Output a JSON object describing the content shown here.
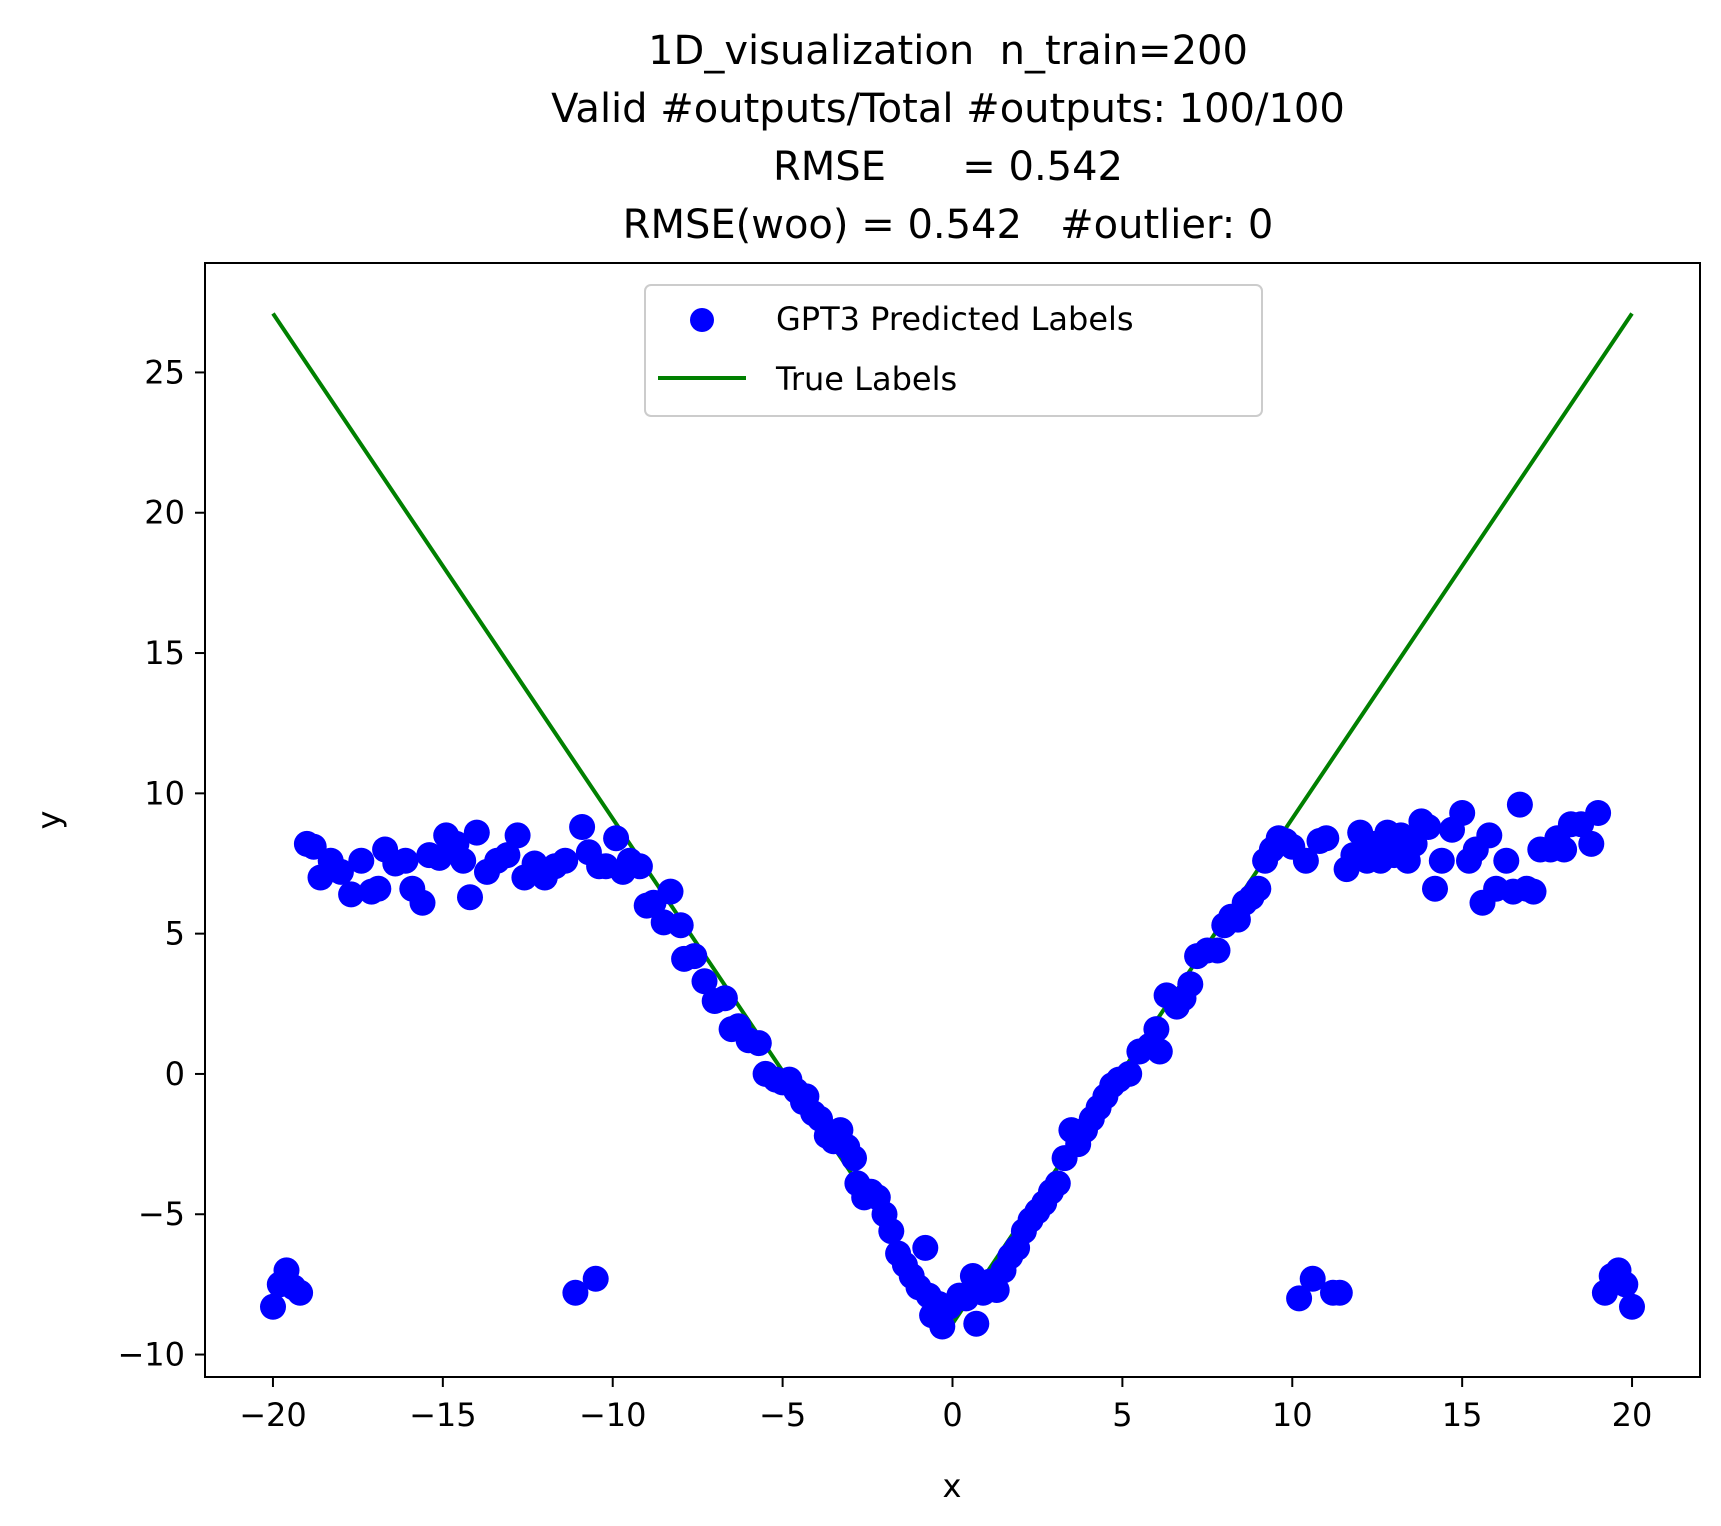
{
  "chart_data": {
    "type": "scatter",
    "title_lines": [
      "1D_visualization  n_train=200",
      "Valid #outputs/Total #outputs: 100/100",
      "RMSE      = 0.542",
      "RMSE(woo) = 0.542   #outlier: 0"
    ],
    "xlabel": "x",
    "ylabel": "y",
    "xlim": [
      -22,
      22
    ],
    "ylim": [
      -10.8,
      28.9
    ],
    "x_ticks": [
      -20,
      -15,
      -10,
      -5,
      0,
      5,
      10,
      15,
      20
    ],
    "x_tick_labels": [
      "−20",
      "−15",
      "−10",
      "−5",
      "0",
      "5",
      "10",
      "15",
      "20"
    ],
    "y_ticks": [
      -10,
      -5,
      0,
      5,
      10,
      15,
      20,
      25
    ],
    "y_tick_labels": [
      "−10",
      "−5",
      "0",
      "5",
      "10",
      "15",
      "20",
      "25"
    ],
    "grid": false,
    "legend_position": "upper-center",
    "legend": [
      {
        "label": "GPT3 Predicted Labels",
        "kind": "marker",
        "color": "#0000ff"
      },
      {
        "label": "True Labels",
        "kind": "line",
        "color": "#008000"
      }
    ],
    "series": [
      {
        "name": "GPT3 Predicted Labels",
        "kind": "scatter",
        "color": "#0000ff",
        "points": [
          [
            -20.0,
            -8.3
          ],
          [
            -19.8,
            -7.5
          ],
          [
            -19.6,
            -7.0
          ],
          [
            -19.4,
            -7.6
          ],
          [
            -19.2,
            -7.8
          ],
          [
            -19.0,
            8.2
          ],
          [
            -18.8,
            8.1
          ],
          [
            -18.6,
            7.0
          ],
          [
            -18.3,
            7.6
          ],
          [
            -18.0,
            7.2
          ],
          [
            -17.7,
            6.4
          ],
          [
            -17.4,
            7.6
          ],
          [
            -17.1,
            6.5
          ],
          [
            -16.9,
            6.6
          ],
          [
            -16.7,
            8.0
          ],
          [
            -16.4,
            7.5
          ],
          [
            -16.1,
            7.6
          ],
          [
            -15.9,
            6.6
          ],
          [
            -15.6,
            6.1
          ],
          [
            -15.4,
            7.8
          ],
          [
            -15.1,
            7.7
          ],
          [
            -14.9,
            8.5
          ],
          [
            -14.6,
            8.2
          ],
          [
            -14.4,
            7.6
          ],
          [
            -14.2,
            6.3
          ],
          [
            -14.0,
            8.6
          ],
          [
            -13.7,
            7.2
          ],
          [
            -13.4,
            7.6
          ],
          [
            -13.1,
            7.8
          ],
          [
            -12.8,
            8.5
          ],
          [
            -12.6,
            7.0
          ],
          [
            -12.3,
            7.5
          ],
          [
            -12.0,
            7.0
          ],
          [
            -11.7,
            7.4
          ],
          [
            -11.4,
            7.6
          ],
          [
            -11.1,
            -7.8
          ],
          [
            -10.9,
            8.8
          ],
          [
            -10.7,
            7.9
          ],
          [
            -10.5,
            -7.3
          ],
          [
            -10.4,
            7.4
          ],
          [
            -10.2,
            7.4
          ],
          [
            -9.9,
            8.4
          ],
          [
            -9.7,
            7.2
          ],
          [
            -9.5,
            7.6
          ],
          [
            -9.2,
            7.4
          ],
          [
            -9.0,
            6.0
          ],
          [
            -8.8,
            6.1
          ],
          [
            -8.5,
            5.4
          ],
          [
            -8.3,
            6.5
          ],
          [
            -8.0,
            5.3
          ],
          [
            -7.9,
            4.1
          ],
          [
            -7.6,
            4.2
          ],
          [
            -7.3,
            3.3
          ],
          [
            -7.0,
            2.6
          ],
          [
            -6.7,
            2.7
          ],
          [
            -6.5,
            1.6
          ],
          [
            -6.3,
            1.7
          ],
          [
            -6.0,
            1.2
          ],
          [
            -5.7,
            1.1
          ],
          [
            -5.5,
            0.0
          ],
          [
            -5.2,
            -0.2
          ],
          [
            -5.0,
            -0.3
          ],
          [
            -4.8,
            -0.2
          ],
          [
            -4.6,
            -0.6
          ],
          [
            -4.4,
            -1.0
          ],
          [
            -4.3,
            -0.8
          ],
          [
            -4.1,
            -1.4
          ],
          [
            -3.9,
            -1.6
          ],
          [
            -3.7,
            -2.2
          ],
          [
            -3.5,
            -2.4
          ],
          [
            -3.3,
            -2.0
          ],
          [
            -3.1,
            -2.6
          ],
          [
            -2.9,
            -3.0
          ],
          [
            -2.8,
            -3.9
          ],
          [
            -2.6,
            -4.4
          ],
          [
            -2.4,
            -4.2
          ],
          [
            -2.2,
            -4.4
          ],
          [
            -2.0,
            -5.0
          ],
          [
            -1.8,
            -5.6
          ],
          [
            -1.6,
            -6.4
          ],
          [
            -1.4,
            -6.8
          ],
          [
            -1.2,
            -7.2
          ],
          [
            -1.0,
            -7.6
          ],
          [
            -0.8,
            -6.2
          ],
          [
            -0.7,
            -7.9
          ],
          [
            -0.6,
            -8.6
          ],
          [
            -0.4,
            -8.2
          ],
          [
            -0.3,
            -9.0
          ],
          [
            -0.1,
            -8.3
          ],
          [
            0.2,
            -7.9
          ],
          [
            0.4,
            -8.0
          ],
          [
            0.6,
            -7.2
          ],
          [
            0.7,
            -8.9
          ],
          [
            0.9,
            -7.8
          ],
          [
            1.1,
            -7.4
          ],
          [
            1.3,
            -7.7
          ],
          [
            1.5,
            -7.0
          ],
          [
            1.7,
            -6.5
          ],
          [
            1.9,
            -6.2
          ],
          [
            2.1,
            -5.6
          ],
          [
            2.3,
            -5.2
          ],
          [
            2.5,
            -4.9
          ],
          [
            2.7,
            -4.6
          ],
          [
            2.9,
            -4.2
          ],
          [
            3.1,
            -3.9
          ],
          [
            3.3,
            -3.0
          ],
          [
            3.5,
            -2.0
          ],
          [
            3.7,
            -2.5
          ],
          [
            3.9,
            -2.0
          ],
          [
            4.1,
            -1.6
          ],
          [
            4.3,
            -1.2
          ],
          [
            4.5,
            -0.8
          ],
          [
            4.7,
            -0.4
          ],
          [
            4.9,
            -0.2
          ],
          [
            5.2,
            0.0
          ],
          [
            5.5,
            0.8
          ],
          [
            5.8,
            1.0
          ],
          [
            6.0,
            1.6
          ],
          [
            6.1,
            0.8
          ],
          [
            6.3,
            2.8
          ],
          [
            6.6,
            2.4
          ],
          [
            6.8,
            2.7
          ],
          [
            7.0,
            3.2
          ],
          [
            7.2,
            4.2
          ],
          [
            7.5,
            4.4
          ],
          [
            7.8,
            4.4
          ],
          [
            8.0,
            5.3
          ],
          [
            8.2,
            5.6
          ],
          [
            8.4,
            5.5
          ],
          [
            8.6,
            6.1
          ],
          [
            8.8,
            6.3
          ],
          [
            9.0,
            6.6
          ],
          [
            9.2,
            7.6
          ],
          [
            9.4,
            8.0
          ],
          [
            9.6,
            8.4
          ],
          [
            9.8,
            8.3
          ],
          [
            10.0,
            8.1
          ],
          [
            10.2,
            -8.0
          ],
          [
            10.4,
            7.6
          ],
          [
            10.6,
            -7.3
          ],
          [
            10.8,
            8.3
          ],
          [
            11.0,
            8.4
          ],
          [
            11.2,
            -7.8
          ],
          [
            11.4,
            -7.8
          ],
          [
            11.6,
            7.3
          ],
          [
            11.8,
            7.8
          ],
          [
            12.0,
            8.6
          ],
          [
            12.2,
            7.6
          ],
          [
            12.4,
            8.2
          ],
          [
            12.6,
            7.6
          ],
          [
            12.8,
            8.6
          ],
          [
            13.0,
            7.8
          ],
          [
            13.2,
            8.5
          ],
          [
            13.4,
            7.6
          ],
          [
            13.6,
            8.2
          ],
          [
            13.8,
            9.0
          ],
          [
            14.0,
            8.8
          ],
          [
            14.2,
            6.6
          ],
          [
            14.4,
            7.6
          ],
          [
            14.7,
            8.7
          ],
          [
            15.0,
            9.3
          ],
          [
            15.2,
            7.6
          ],
          [
            15.4,
            8.0
          ],
          [
            15.6,
            6.1
          ],
          [
            15.8,
            8.5
          ],
          [
            16.0,
            6.6
          ],
          [
            16.3,
            7.6
          ],
          [
            16.5,
            6.5
          ],
          [
            16.7,
            9.6
          ],
          [
            16.9,
            6.6
          ],
          [
            17.1,
            6.5
          ],
          [
            17.3,
            8.0
          ],
          [
            17.6,
            8.0
          ],
          [
            17.8,
            8.4
          ],
          [
            18.0,
            8.0
          ],
          [
            18.2,
            8.9
          ],
          [
            18.5,
            8.9
          ],
          [
            18.8,
            8.2
          ],
          [
            19.0,
            9.3
          ],
          [
            19.2,
            -7.8
          ],
          [
            19.4,
            -7.2
          ],
          [
            19.6,
            -7.0
          ],
          [
            19.8,
            -7.5
          ],
          [
            20.0,
            -8.3
          ]
        ]
      },
      {
        "name": "True Labels",
        "kind": "line",
        "color": "#008000",
        "points": [
          [
            -20,
            27.1
          ],
          [
            0,
            -8.9
          ],
          [
            20,
            27.1
          ]
        ]
      }
    ]
  }
}
